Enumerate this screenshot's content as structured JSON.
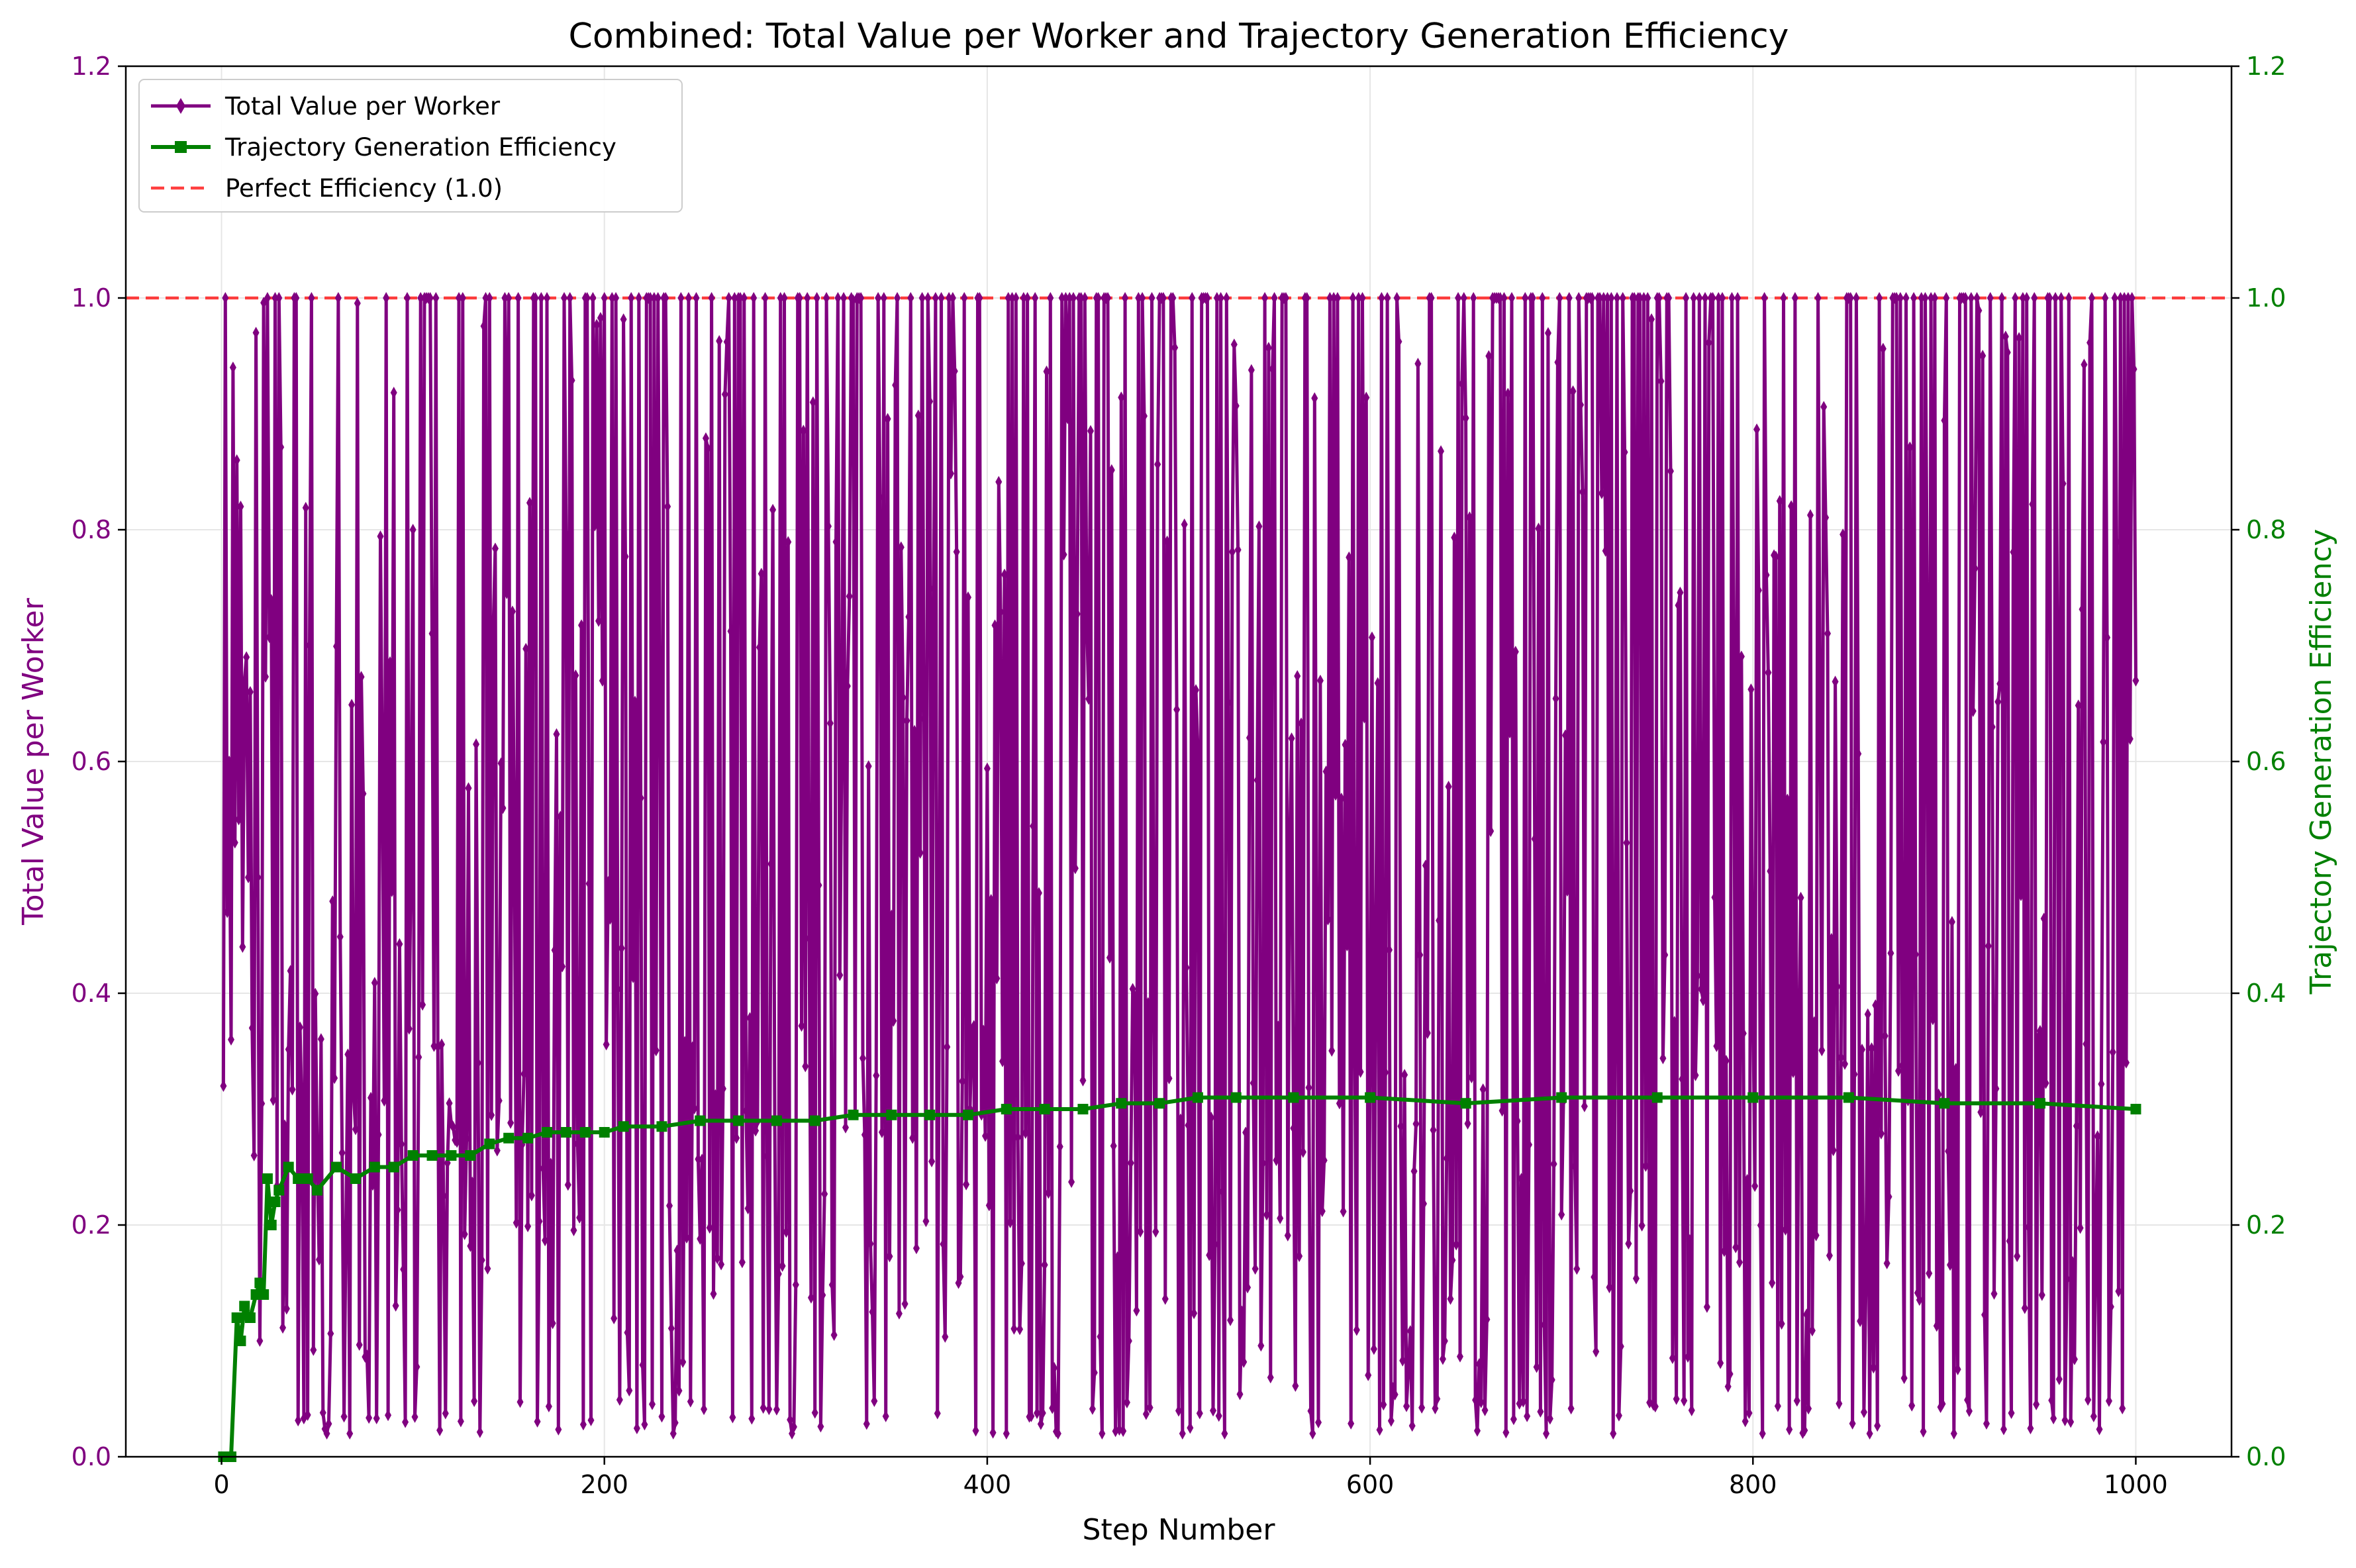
{
  "chart_data": {
    "type": "line",
    "title": "Combined: Total Value per Worker and Trajectory Generation Efficiency",
    "xlabel": "Step Number",
    "ylabel_left": "Total Value per Worker",
    "ylabel_right": "Trajectory Generation Efficiency",
    "xlim": [
      -50,
      1050
    ],
    "ylim": [
      0,
      1.2
    ],
    "y2lim": [
      0,
      1.2
    ],
    "x_ticks": [
      0,
      200,
      400,
      600,
      800,
      1000
    ],
    "x_tick_labels": [
      "0",
      "200",
      "400",
      "600",
      "800",
      "1000"
    ],
    "y_ticks": [
      0.0,
      0.2,
      0.4,
      0.6,
      0.8,
      1.0,
      1.2
    ],
    "y_tick_labels": [
      "0.0",
      "0.2",
      "0.4",
      "0.6",
      "0.8",
      "1.0",
      "1.2"
    ],
    "y2_tick_labels": [
      "0.0",
      "0.2",
      "0.4",
      "0.6",
      "0.8",
      "1.0",
      "1.2"
    ],
    "grid": true,
    "legend_position": "top-left",
    "colors": {
      "value_series": "#800080",
      "efficiency_series": "#008000",
      "reference_line": "#ff0000",
      "left_axis": "#800080",
      "right_axis": "#008000"
    },
    "series": [
      {
        "name": "Total Value per Worker",
        "axis": "left",
        "marker": "diamond",
        "x_start": 1,
        "x_step": 1,
        "x_end": 1000,
        "value_range": [
          0.02,
          1.0
        ],
        "first_values": [
          0.32,
          1.0,
          0.47,
          0.6,
          0.36,
          0.94,
          0.53,
          0.86,
          0.55,
          0.82,
          0.44,
          0.67,
          0.69,
          0.5,
          0.66,
          0.37,
          0.26,
          0.97,
          0.5,
          0.1
        ]
      },
      {
        "name": "Trajectory Generation Efficiency",
        "axis": "right",
        "marker": "square",
        "x": [
          1,
          5,
          8,
          10,
          12,
          15,
          18,
          20,
          22,
          24,
          26,
          28,
          30,
          35,
          40,
          45,
          50,
          60,
          70,
          80,
          90,
          100,
          110,
          120,
          130,
          140,
          150,
          160,
          170,
          180,
          190,
          200,
          210,
          230,
          250,
          270,
          290,
          310,
          330,
          350,
          370,
          390,
          410,
          430,
          450,
          470,
          490,
          510,
          530,
          560,
          600,
          650,
          700,
          750,
          800,
          850,
          900,
          950,
          1000
        ],
        "values": [
          0.0,
          0.0,
          0.12,
          0.1,
          0.13,
          0.12,
          0.14,
          0.15,
          0.14,
          0.24,
          0.2,
          0.22,
          0.23,
          0.25,
          0.24,
          0.24,
          0.23,
          0.25,
          0.24,
          0.25,
          0.25,
          0.26,
          0.26,
          0.26,
          0.26,
          0.27,
          0.275,
          0.275,
          0.28,
          0.28,
          0.28,
          0.28,
          0.285,
          0.285,
          0.29,
          0.29,
          0.29,
          0.29,
          0.295,
          0.295,
          0.295,
          0.295,
          0.3,
          0.3,
          0.3,
          0.305,
          0.305,
          0.31,
          0.31,
          0.31,
          0.31,
          0.305,
          0.31,
          0.31,
          0.31,
          0.31,
          0.305,
          0.305,
          0.3
        ]
      },
      {
        "name": "Perfect Efficiency (1.0)",
        "axis": "left",
        "style": "dashed",
        "y": 1.0
      }
    ]
  }
}
